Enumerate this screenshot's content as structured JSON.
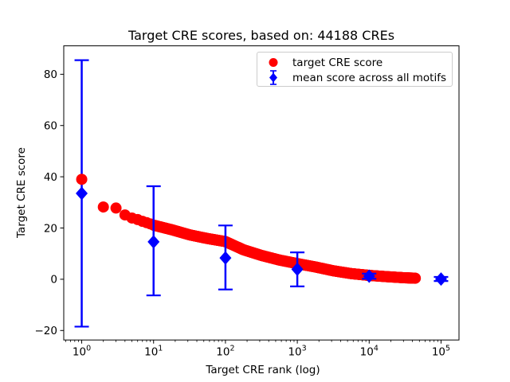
{
  "figure": {
    "title": "Target CRE scores, based on: 44188 CREs",
    "xlabel": "Target CRE rank (log)",
    "ylabel": "Target CRE score"
  },
  "colors": {
    "target": "#ff0000",
    "mean": "#0000ff",
    "axis": "#000000",
    "background": "#ffffff",
    "legend_border": "#cccccc"
  },
  "legend": {
    "position": "upper right",
    "items": [
      {
        "label": "target CRE score",
        "marker": "red-circle"
      },
      {
        "label": "mean score across all motifs",
        "marker": "blue-diamond-errorbar"
      }
    ]
  },
  "chart_data": {
    "type": "scatter",
    "title": "Target CRE scores, based on: 44188 CREs",
    "xlabel": "Target CRE rank (log)",
    "ylabel": "Target CRE score",
    "x_scale": "log10",
    "grid": false,
    "n_cres": 44188,
    "xlim_log10": [
      -0.25,
      5.25
    ],
    "ylim": [
      -23.7,
      91.1
    ],
    "x_tick_values": [
      1,
      10,
      100,
      1000,
      10000,
      100000
    ],
    "x_tick_base": "10",
    "x_tick_exponents": [
      "0",
      "1",
      "2",
      "3",
      "4",
      "5"
    ],
    "y_tick_values": [
      -20,
      0,
      20,
      40,
      60,
      80
    ],
    "y_tick_labels": [
      "−20",
      "0",
      "20",
      "40",
      "60",
      "80"
    ],
    "series": [
      {
        "name": "target CRE score",
        "marker": "circle",
        "color": "#ff0000",
        "points_depicted": 44188,
        "curve_anchors": {
          "rank": [
            1,
            2,
            3,
            4,
            5,
            6,
            7,
            8,
            9,
            10,
            18,
            32,
            56,
            100,
            178,
            316,
            562,
            1000,
            1778,
            3162,
            5623,
            10000,
            17783,
            30000,
            44188
          ],
          "score": [
            39,
            28.2,
            27.8,
            25.1,
            23.9,
            23.3,
            22.6,
            22.1,
            21.6,
            21.1,
            19.3,
            17.3,
            15.9,
            14.7,
            11.5,
            9.3,
            7.5,
            6.1,
            4.8,
            3.3,
            2.2,
            1.5,
            1.0,
            0.6,
            0.4
          ]
        }
      },
      {
        "name": "mean score across all motifs",
        "marker": "diamond",
        "color": "#0000ff",
        "errorbar_points": [
          {
            "rank": 1,
            "mean": 33.5,
            "lo": -18.5,
            "hi": 85.5
          },
          {
            "rank": 10,
            "mean": 14.6,
            "lo": -6.3,
            "hi": 36.3
          },
          {
            "rank": 100,
            "mean": 8.3,
            "lo": -4.0,
            "hi": 21.0
          },
          {
            "rank": 1000,
            "mean": 3.9,
            "lo": -2.8,
            "hi": 10.5
          },
          {
            "rank": 10000,
            "mean": 1.2,
            "lo": 0.2,
            "hi": 2.2
          },
          {
            "rank": 100000,
            "mean": 0.1,
            "lo": -0.7,
            "hi": 0.9
          }
        ]
      }
    ]
  }
}
